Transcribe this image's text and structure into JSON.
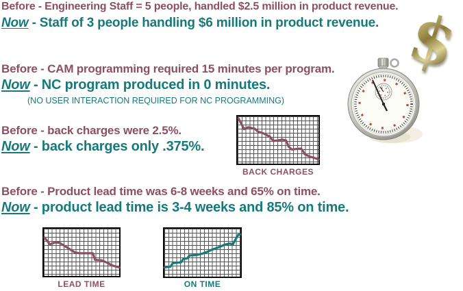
{
  "colors": {
    "before_text": "#8C4F63",
    "now_text": "#157A7C",
    "chart_grid": "#565656",
    "chart_border": "#0A0A0A",
    "gold_dollar": "#A08E4A",
    "background": "#FFFFFF"
  },
  "sections": [
    {
      "before_label": "Before",
      "before_rest": " - Engineering Staff = 5 people, handled $2.5 million in product revenue.",
      "now_label": "Now",
      "now_rest": " - Staff of 3 people handling $6 million in product revenue."
    },
    {
      "before_label": "Before",
      "before_rest": " - CAM programming required 15 minutes per program.",
      "now_label": "Now",
      "now_rest": " - NC program produced in 0 minutes.",
      "note": "(NO USER INTERACTION REQUIRED FOR NC PROGRAMMING)"
    },
    {
      "before_label": "Before",
      "before_rest": " - back charges were 2.5%.",
      "now_label": "Now",
      "now_rest": " - back charges only .375%."
    },
    {
      "before_label": "Before",
      "before_rest": " - Product lead time was 6-8 weeks and 65% on time.",
      "now_label": "Now",
      "now_rest": " - product lead time is 3-4 weeks and 85% on time."
    }
  ],
  "icons": {
    "dollar_glyph": "$",
    "stopwatch": "stopwatch-photo"
  },
  "chart_data": [
    {
      "type": "line",
      "title": "BACK CHARGES",
      "color": "#8C4F63",
      "trend": "decreasing",
      "xlabel": "",
      "ylabel": "",
      "grid": true,
      "points_pct": [
        [
          1,
          4
        ],
        [
          8,
          27
        ],
        [
          13,
          23
        ],
        [
          21,
          26
        ],
        [
          25,
          32
        ],
        [
          32,
          36
        ],
        [
          40,
          43
        ],
        [
          44,
          52
        ],
        [
          49,
          51
        ],
        [
          55,
          49
        ],
        [
          60,
          51
        ],
        [
          63,
          64
        ],
        [
          67,
          70
        ],
        [
          78,
          68
        ],
        [
          80,
          71
        ],
        [
          83,
          80
        ],
        [
          89,
          85
        ],
        [
          95,
          88
        ],
        [
          100,
          91
        ]
      ]
    },
    {
      "type": "line",
      "title": "LEAD TIME",
      "color": "#8C4F63",
      "trend": "decreasing",
      "xlabel": "",
      "ylabel": "",
      "grid": true,
      "points_pct": [
        [
          1,
          19
        ],
        [
          8,
          33
        ],
        [
          15,
          29
        ],
        [
          21,
          30
        ],
        [
          31,
          40
        ],
        [
          41,
          50
        ],
        [
          47,
          52
        ],
        [
          65,
          52
        ],
        [
          68,
          66
        ],
        [
          77,
          67
        ],
        [
          84,
          72
        ],
        [
          91,
          78
        ],
        [
          100,
          82
        ]
      ]
    },
    {
      "type": "line",
      "title": "ON TIME",
      "color": "#157A7C",
      "trend": "increasing",
      "xlabel": "",
      "ylabel": "",
      "grid": true,
      "points_pct": [
        [
          0,
          81
        ],
        [
          8,
          79
        ],
        [
          11,
          72
        ],
        [
          22,
          70
        ],
        [
          25,
          63
        ],
        [
          30,
          62
        ],
        [
          33,
          56
        ],
        [
          42,
          55
        ],
        [
          50,
          52
        ],
        [
          57,
          48
        ],
        [
          62,
          44
        ],
        [
          68,
          41
        ],
        [
          74,
          37
        ],
        [
          80,
          33
        ],
        [
          86,
          31
        ],
        [
          90,
          33
        ],
        [
          93,
          24
        ],
        [
          97,
          13
        ],
        [
          100,
          12
        ]
      ]
    }
  ]
}
